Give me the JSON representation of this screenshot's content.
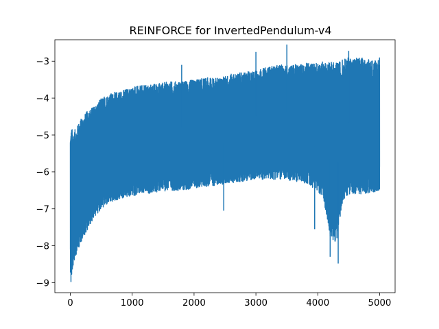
{
  "chart_data": {
    "type": "line",
    "title": "REINFORCE for InvertedPendulum-v4",
    "xlabel": "",
    "ylabel": "",
    "xlim": [
      -250,
      5250
    ],
    "ylim": [
      -9.27,
      -2.42
    ],
    "xticks": [
      0,
      1000,
      2000,
      3000,
      4000,
      5000
    ],
    "xtick_labels": [
      "0",
      "1000",
      "2000",
      "3000",
      "4000",
      "5000"
    ],
    "yticks": [
      -9,
      -8,
      -7,
      -6,
      -5,
      -4,
      -3
    ],
    "ytick_labels": [
      "−9",
      "−8",
      "−7",
      "−6",
      "−5",
      "−4",
      "−3"
    ],
    "grid": false,
    "legend": "none",
    "series_color": "#1f77b4",
    "series": [
      {
        "x": [
          0,
          20,
          50,
          100,
          150,
          200,
          300,
          400,
          500,
          600,
          700,
          800,
          900,
          1000,
          1200,
          1400,
          1600,
          1800,
          2000,
          2200,
          2400,
          2600,
          2800,
          3000,
          3200,
          3400,
          3600,
          3800,
          4000,
          4100,
          4200,
          4300,
          4400,
          4500,
          4600,
          4700,
          4800,
          4900,
          5000
        ],
        "upper": [
          -4.9,
          -4.8,
          -4.9,
          -4.8,
          -4.6,
          -4.5,
          -4.3,
          -4.2,
          -4.0,
          -3.9,
          -3.85,
          -3.8,
          -3.75,
          -3.7,
          -3.65,
          -3.6,
          -3.55,
          -3.55,
          -3.5,
          -3.45,
          -3.45,
          -3.35,
          -3.3,
          -3.25,
          -3.15,
          -3.1,
          -3.1,
          -3.05,
          -3.05,
          -3.0,
          -3.0,
          -3.05,
          -2.95,
          -2.9,
          -2.9,
          -2.9,
          -2.95,
          -2.95,
          -2.9
        ],
        "lower": [
          -8.7,
          -8.9,
          -8.5,
          -8.2,
          -8.0,
          -7.8,
          -7.5,
          -7.2,
          -7.0,
          -6.9,
          -6.8,
          -6.75,
          -6.7,
          -6.65,
          -6.6,
          -6.55,
          -6.5,
          -6.5,
          -6.45,
          -6.4,
          -6.35,
          -6.3,
          -6.25,
          -6.2,
          -6.2,
          -6.2,
          -6.25,
          -6.3,
          -6.5,
          -6.8,
          -7.8,
          -7.9,
          -6.8,
          -6.6,
          -6.6,
          -6.6,
          -6.6,
          -6.55,
          -6.5
        ],
        "spikes_up": [
          [
            1800,
            -3.1
          ],
          [
            3500,
            -2.55
          ],
          [
            3000,
            -2.75
          ],
          [
            4500,
            -2.72
          ]
        ],
        "spikes_down": [
          [
            10,
            -8.98
          ],
          [
            4200,
            -8.3
          ],
          [
            4330,
            -8.48
          ],
          [
            3950,
            -7.55
          ],
          [
            2480,
            -7.05
          ]
        ]
      }
    ]
  }
}
